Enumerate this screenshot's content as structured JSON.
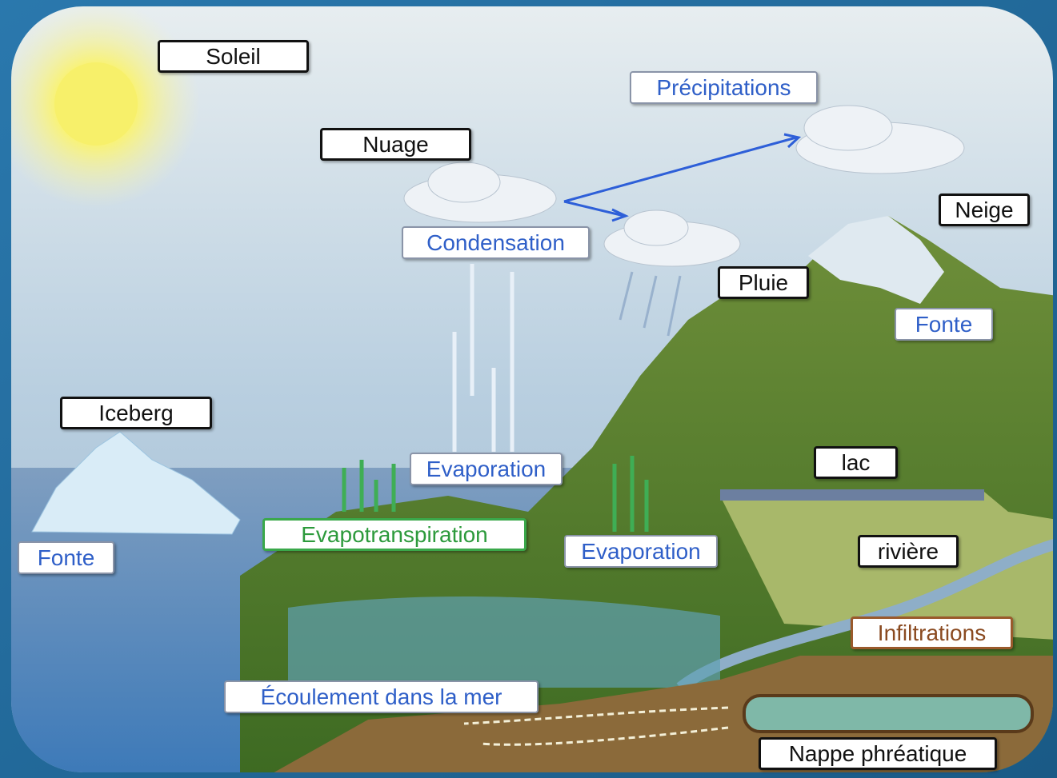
{
  "labels": [
    {
      "text": "Soleil"
    },
    {
      "text": "Nuage"
    },
    {
      "text": "Précipitations"
    },
    {
      "text": "Condensation"
    },
    {
      "text": "Neige"
    },
    {
      "text": "Pluie"
    },
    {
      "text": "Fonte"
    },
    {
      "text": "Iceberg"
    },
    {
      "text": "Evaporation"
    },
    {
      "text": "lac"
    },
    {
      "text": "Evapotranspiration"
    },
    {
      "text": "Evaporation"
    },
    {
      "text": "rivière"
    },
    {
      "text": "Fonte"
    },
    {
      "text": "Infiltrations"
    },
    {
      "text": "Écoulement dans la mer"
    },
    {
      "text": "Nappe phréatique"
    }
  ]
}
